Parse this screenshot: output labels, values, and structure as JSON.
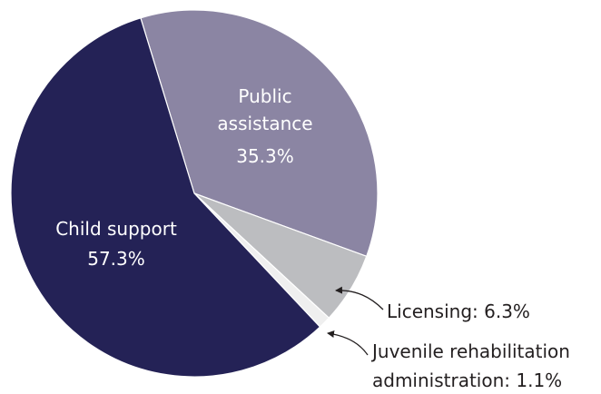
{
  "chart_data": {
    "type": "pie",
    "title": "",
    "slices": [
      {
        "label": "Public assistance",
        "label_lines": [
          "Public",
          "assistance"
        ],
        "value": 35.3,
        "value_label": "35.3%",
        "color": "#8b85a3",
        "label_position": "inside"
      },
      {
        "label": "Licensing",
        "label_lines": [
          "Licensing: 6.3%"
        ],
        "value": 6.3,
        "color": "#bcbdc0",
        "label_position": "outside"
      },
      {
        "label": "Juvenile rehabilitation administration",
        "label_lines": [
          "Juvenile rehabilitation",
          "administration: 1.1%"
        ],
        "value": 1.1,
        "color": "#efefef",
        "label_position": "outside"
      },
      {
        "label": "Child support",
        "label_lines": [
          "Child support"
        ],
        "value": 57.3,
        "value_label": "57.3%",
        "color": "#242256",
        "label_position": "inside"
      }
    ],
    "start_slice": "Public assistance",
    "direction": "clockwise",
    "legend": "none"
  }
}
